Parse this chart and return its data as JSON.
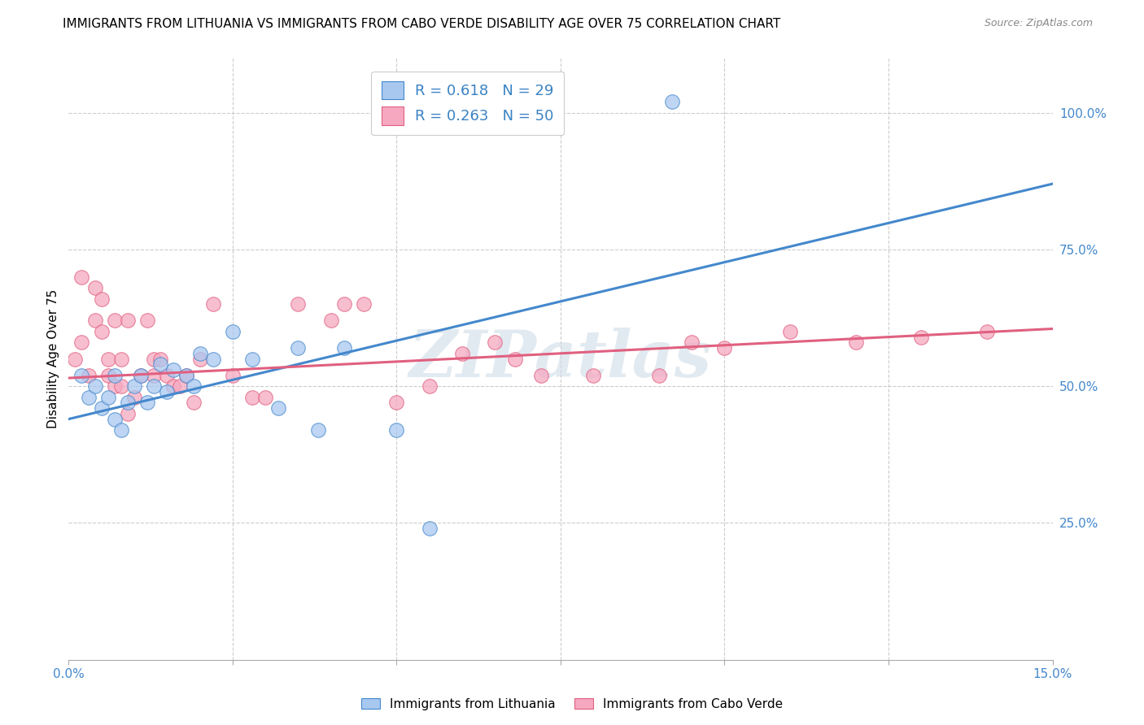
{
  "title": "IMMIGRANTS FROM LITHUANIA VS IMMIGRANTS FROM CABO VERDE DISABILITY AGE OVER 75 CORRELATION CHART",
  "source": "Source: ZipAtlas.com",
  "ylabel": "Disability Age Over 75",
  "xlim": [
    0.0,
    0.15
  ],
  "ylim": [
    0.0,
    1.1
  ],
  "lithuania_R": 0.618,
  "lithuania_N": 29,
  "caboverde_R": 0.263,
  "caboverde_N": 50,
  "lithuania_color": "#A8C8F0",
  "caboverde_color": "#F5A8C0",
  "line_lithuania_color": "#4488CC",
  "line_caboverde_color": "#E06080",
  "watermark": "ZIPatlas",
  "lit_line_x0": 0.0,
  "lit_line_y0": 0.44,
  "lit_line_x1": 0.15,
  "lit_line_y1": 0.87,
  "cv_line_x0": 0.0,
  "cv_line_y0": 0.515,
  "cv_line_x1": 0.15,
  "cv_line_y1": 0.605,
  "lithuania_x": [
    0.002,
    0.003,
    0.004,
    0.005,
    0.006,
    0.007,
    0.007,
    0.008,
    0.009,
    0.01,
    0.011,
    0.012,
    0.013,
    0.014,
    0.015,
    0.016,
    0.018,
    0.019,
    0.02,
    0.022,
    0.025,
    0.028,
    0.032,
    0.035,
    0.038,
    0.042,
    0.05,
    0.055,
    0.092
  ],
  "lithuania_y": [
    0.52,
    0.48,
    0.5,
    0.46,
    0.48,
    0.44,
    0.52,
    0.42,
    0.47,
    0.5,
    0.52,
    0.47,
    0.5,
    0.54,
    0.49,
    0.53,
    0.52,
    0.5,
    0.56,
    0.55,
    0.6,
    0.55,
    0.46,
    0.57,
    0.42,
    0.57,
    0.42,
    0.24,
    1.02
  ],
  "caboverde_x": [
    0.001,
    0.002,
    0.002,
    0.003,
    0.004,
    0.004,
    0.005,
    0.005,
    0.006,
    0.006,
    0.007,
    0.007,
    0.008,
    0.008,
    0.009,
    0.009,
    0.01,
    0.011,
    0.012,
    0.013,
    0.013,
    0.014,
    0.015,
    0.016,
    0.017,
    0.018,
    0.019,
    0.02,
    0.022,
    0.025,
    0.028,
    0.03,
    0.035,
    0.04,
    0.042,
    0.045,
    0.05,
    0.055,
    0.06,
    0.065,
    0.068,
    0.072,
    0.08,
    0.09,
    0.095,
    0.1,
    0.11,
    0.12,
    0.13,
    0.14
  ],
  "caboverde_y": [
    0.55,
    0.7,
    0.58,
    0.52,
    0.62,
    0.68,
    0.6,
    0.66,
    0.55,
    0.52,
    0.5,
    0.62,
    0.5,
    0.55,
    0.45,
    0.62,
    0.48,
    0.52,
    0.62,
    0.52,
    0.55,
    0.55,
    0.52,
    0.5,
    0.5,
    0.52,
    0.47,
    0.55,
    0.65,
    0.52,
    0.48,
    0.48,
    0.65,
    0.62,
    0.65,
    0.65,
    0.47,
    0.5,
    0.56,
    0.58,
    0.55,
    0.52,
    0.52,
    0.52,
    0.58,
    0.57,
    0.6,
    0.58,
    0.59,
    0.6
  ],
  "title_fontsize": 11,
  "axis_label_fontsize": 11,
  "tick_fontsize": 11,
  "legend_fontsize": 13
}
